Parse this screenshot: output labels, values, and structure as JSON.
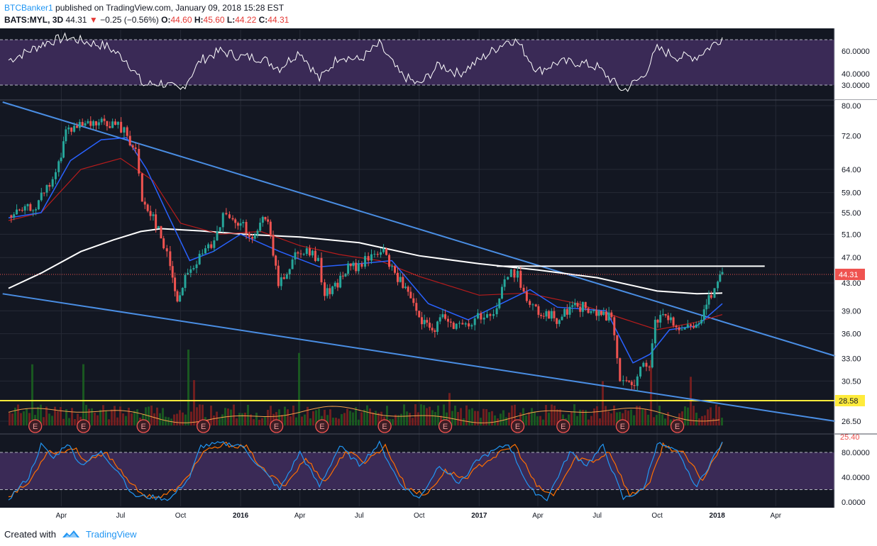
{
  "header": {
    "author": "BTCBanker1",
    "published_text": "published on TradingView.com, January 09, 2018 15:28 EST",
    "symbol_label": "BATS:MYL, 3D",
    "last": "44.31",
    "change_arrow": "▼",
    "change": "−0.25 (−0.56%)",
    "o_label": "O:",
    "o_value": "44.60",
    "h_label": "H:",
    "h_value": "45.60",
    "l_label": "L:",
    "l_value": "44.22",
    "c_label": "C:",
    "c_value": "44.31"
  },
  "footer": {
    "created_with": "Created with",
    "brand": "TradingView"
  },
  "colors": {
    "panel_bg": "#131722",
    "grid": "#262a36",
    "band": "#3a2a56",
    "up": "#26a69a",
    "down": "#ef5350",
    "trendline": "#4a8ee4",
    "ema20": "#2962ff",
    "ema50": "#b71c1c",
    "sma200": "#ffffff",
    "support": "#ffeb3b",
    "stoch_k": "#2196f3",
    "stoch_d": "#ff6f00",
    "last_price": "#ef5350"
  },
  "chart_data": {
    "type": "candlestick",
    "symbol": "BATS:MYL",
    "interval": "3D",
    "x_ticks": [
      "Apr",
      "Jul",
      "Oct",
      "2016",
      "Apr",
      "Jul",
      "Oct",
      "2017",
      "Apr",
      "Jul",
      "Oct",
      "2018",
      "Apr"
    ],
    "price_axis": {
      "scale": "log",
      "ticks": [
        "80.00",
        "72.00",
        "64.00",
        "59.00",
        "55.00",
        "51.00",
        "47.00",
        "43.00",
        "39.00",
        "36.00",
        "33.00",
        "30.50",
        "26.50"
      ],
      "range": [
        25.0,
        81.0
      ],
      "current_price_label": "44.31",
      "support_label": "28.58",
      "clipped_bottom_label": "25.40"
    },
    "price_points": [
      [
        "2015-01-10",
        54.5
      ],
      [
        "2015-01-31",
        55.2
      ],
      [
        "2015-02-21",
        56.5
      ],
      [
        "2015-03-14",
        60.5
      ],
      [
        "2015-03-28",
        65.0
      ],
      [
        "2015-04-08",
        73.5
      ],
      [
        "2015-04-25",
        74.0
      ],
      [
        "2015-05-16",
        74.5
      ],
      [
        "2015-06-06",
        75.5
      ],
      [
        "2015-06-27",
        74.5
      ],
      [
        "2015-07-11",
        72.5
      ],
      [
        "2015-07-24",
        68.0
      ],
      [
        "2015-08-03",
        57.5
      ],
      [
        "2015-08-20",
        54.5
      ],
      [
        "2015-09-05",
        49.0
      ],
      [
        "2015-09-15",
        46.0
      ],
      [
        "2015-09-26",
        40.5
      ],
      [
        "2015-10-12",
        44.5
      ],
      [
        "2015-10-30",
        47.0
      ],
      [
        "2015-11-17",
        49.5
      ],
      [
        "2015-12-05",
        54.5
      ],
      [
        "2015-12-20",
        53.0
      ],
      [
        "2016-01-05",
        52.5
      ],
      [
        "2016-01-19",
        49.5
      ],
      [
        "2016-02-08",
        54.5
      ],
      [
        "2016-02-28",
        43.0
      ],
      [
        "2016-03-12",
        45.0
      ],
      [
        "2016-03-29",
        48.5
      ],
      [
        "2016-04-16",
        48.0
      ],
      [
        "2016-04-29",
        46.0
      ],
      [
        "2016-05-09",
        41.5
      ],
      [
        "2016-05-25",
        42.5
      ],
      [
        "2016-06-14",
        45.5
      ],
      [
        "2016-06-30",
        45.5
      ],
      [
        "2016-07-15",
        47.0
      ],
      [
        "2016-08-03",
        48.5
      ],
      [
        "2016-08-16",
        46.0
      ],
      [
        "2016-08-29",
        44.0
      ],
      [
        "2016-09-18",
        40.5
      ],
      [
        "2016-10-01",
        37.8
      ],
      [
        "2016-10-21",
        36.5
      ],
      [
        "2016-11-10",
        38.5
      ],
      [
        "2016-11-27",
        37.0
      ],
      [
        "2016-12-16",
        37.0
      ],
      [
        "2016-12-30",
        38.5
      ],
      [
        "2017-01-18",
        38.5
      ],
      [
        "2017-01-28",
        39.5
      ],
      [
        "2017-02-09",
        43.5
      ],
      [
        "2017-02-19",
        44.5
      ],
      [
        "2017-03-01",
        44.5
      ],
      [
        "2017-03-15",
        40.5
      ],
      [
        "2017-03-29",
        39.0
      ],
      [
        "2017-04-10",
        38.5
      ],
      [
        "2017-04-30",
        38.0
      ],
      [
        "2017-05-20",
        39.5
      ],
      [
        "2017-06-09",
        39.5
      ],
      [
        "2017-06-30",
        38.5
      ],
      [
        "2017-07-11",
        38.5
      ],
      [
        "2017-07-23",
        38.0
      ],
      [
        "2017-08-05",
        31.0
      ],
      [
        "2017-08-15",
        30.0
      ],
      [
        "2017-08-27",
        30.5
      ],
      [
        "2017-09-10",
        32.0
      ],
      [
        "2017-09-19",
        31.5
      ],
      [
        "2017-09-28",
        37.5
      ],
      [
        "2017-10-14",
        38.5
      ],
      [
        "2017-10-26",
        37.0
      ],
      [
        "2017-11-08",
        36.0
      ],
      [
        "2017-11-26",
        37.0
      ],
      [
        "2017-12-12",
        38.5
      ],
      [
        "2017-12-23",
        41.5
      ],
      [
        "2018-01-02",
        43.0
      ],
      [
        "2018-01-09",
        44.31
      ]
    ],
    "lines": {
      "sma200": [
        [
          "2015-01-10",
          42.2
        ],
        [
          "2015-03-01",
          44.5
        ],
        [
          "2015-05-01",
          48.0
        ],
        [
          "2015-06-20",
          50.0
        ],
        [
          "2015-08-01",
          51.5
        ],
        [
          "2015-09-01",
          52.0
        ],
        [
          "2015-11-01",
          51.6
        ],
        [
          "2016-01-05",
          51.0
        ],
        [
          "2016-04-01",
          50.5
        ],
        [
          "2016-07-01",
          49.5
        ],
        [
          "2016-10-01",
          47.3
        ],
        [
          "2017-01-01",
          46.0
        ],
        [
          "2017-04-01",
          45.0
        ],
        [
          "2017-07-01",
          43.8
        ],
        [
          "2017-10-01",
          41.8
        ],
        [
          "2017-12-01",
          41.4
        ],
        [
          "2018-01-09",
          41.5
        ]
      ],
      "ema50": [
        [
          "2015-01-10",
          53.5
        ],
        [
          "2015-03-01",
          55.0
        ],
        [
          "2015-05-01",
          64.0
        ],
        [
          "2015-07-01",
          66.5
        ],
        [
          "2015-08-20",
          61.5
        ],
        [
          "2015-10-01",
          53.0
        ],
        [
          "2015-12-01",
          51.0
        ],
        [
          "2016-02-01",
          51.5
        ],
        [
          "2016-04-01",
          49.0
        ],
        [
          "2016-06-01",
          47.5
        ],
        [
          "2016-08-01",
          46.5
        ],
        [
          "2016-10-01",
          44.0
        ],
        [
          "2017-01-01",
          41.2
        ],
        [
          "2017-03-15",
          41.5
        ],
        [
          "2017-06-01",
          40.0
        ],
        [
          "2017-08-15",
          37.8
        ],
        [
          "2017-10-01",
          36.5
        ],
        [
          "2017-12-01",
          37.5
        ],
        [
          "2018-01-09",
          38.5
        ]
      ],
      "ema20": [
        [
          "2015-01-10",
          54.0
        ],
        [
          "2015-03-01",
          55.0
        ],
        [
          "2015-04-15",
          66.0
        ],
        [
          "2015-06-01",
          71.0
        ],
        [
          "2015-07-10",
          71.5
        ],
        [
          "2015-08-10",
          64.0
        ],
        [
          "2015-09-10",
          55.0
        ],
        [
          "2015-10-15",
          46.5
        ],
        [
          "2015-11-20",
          48.0
        ],
        [
          "2016-01-01",
          51.0
        ],
        [
          "2016-03-01",
          48.0
        ],
        [
          "2016-05-01",
          45.5
        ],
        [
          "2016-07-01",
          46.0
        ],
        [
          "2016-08-20",
          46.5
        ],
        [
          "2016-10-15",
          40.0
        ],
        [
          "2016-12-15",
          37.8
        ],
        [
          "2017-02-15",
          40.5
        ],
        [
          "2017-03-20",
          42.0
        ],
        [
          "2017-05-01",
          39.5
        ],
        [
          "2017-07-15",
          39.0
        ],
        [
          "2017-08-25",
          32.5
        ],
        [
          "2017-09-20",
          33.5
        ],
        [
          "2017-10-20",
          36.5
        ],
        [
          "2017-12-01",
          37.0
        ],
        [
          "2018-01-09",
          40.0
        ]
      ],
      "upper_trendline": [
        [
          "2015-01-01",
          81.0
        ],
        [
          "2018-07-01",
          33.3
        ]
      ],
      "lower_trendline": [
        [
          "2015-01-01",
          41.4
        ],
        [
          "2018-07-01",
          26.5
        ]
      ],
      "resistance": [
        [
          "2017-01-28",
          45.6
        ],
        [
          "2018-03-15",
          45.6
        ]
      ],
      "support": 28.58
    },
    "earnings_markers": [
      "E",
      "E",
      "E",
      "E",
      "E",
      "E",
      "E",
      "E",
      "E",
      "E",
      "E",
      "E"
    ],
    "rsi": {
      "ticks": [
        "60.0000",
        "40.0000",
        "30.0000"
      ],
      "range": [
        22,
        82
      ],
      "bands": [
        30,
        70
      ],
      "points": [
        [
          "2015-01-10",
          52
        ],
        [
          "2015-02-10",
          60
        ],
        [
          "2015-03-10",
          68
        ],
        [
          "2015-04-10",
          72
        ],
        [
          "2015-05-10",
          68
        ],
        [
          "2015-06-10",
          64
        ],
        [
          "2015-07-10",
          52
        ],
        [
          "2015-08-05",
          30
        ],
        [
          "2015-09-01",
          32
        ],
        [
          "2015-10-01",
          25
        ],
        [
          "2015-11-01",
          52
        ],
        [
          "2015-12-01",
          60
        ],
        [
          "2016-01-01",
          55
        ],
        [
          "2016-02-01",
          54
        ],
        [
          "2016-03-01",
          45
        ],
        [
          "2016-04-01",
          60
        ],
        [
          "2016-05-01",
          35
        ],
        [
          "2016-06-01",
          56
        ],
        [
          "2016-07-01",
          52
        ],
        [
          "2016-08-01",
          66
        ],
        [
          "2016-09-01",
          40
        ],
        [
          "2016-10-01",
          30
        ],
        [
          "2016-11-01",
          48
        ],
        [
          "2016-12-01",
          40
        ],
        [
          "2017-01-01",
          52
        ],
        [
          "2017-02-15",
          70
        ],
        [
          "2017-03-01",
          68
        ],
        [
          "2017-04-01",
          42
        ],
        [
          "2017-05-01",
          50
        ],
        [
          "2017-06-01",
          50
        ],
        [
          "2017-07-01",
          46
        ],
        [
          "2017-08-10",
          25
        ],
        [
          "2017-09-10",
          38
        ],
        [
          "2017-10-01",
          62
        ],
        [
          "2017-11-01",
          55
        ],
        [
          "2017-12-01",
          55
        ],
        [
          "2018-01-09",
          72
        ]
      ]
    },
    "stochastic": {
      "ticks": [
        "80.0000",
        "40.0000",
        "0.0000"
      ],
      "range": [
        -3,
        105
      ],
      "bands": [
        20,
        80
      ],
      "k_points": [
        [
          "2015-01-10",
          5
        ],
        [
          "2015-02-10",
          40
        ],
        [
          "2015-03-01",
          92
        ],
        [
          "2015-03-20",
          70
        ],
        [
          "2015-04-10",
          95
        ],
        [
          "2015-05-01",
          60
        ],
        [
          "2015-06-01",
          80
        ],
        [
          "2015-07-01",
          45
        ],
        [
          "2015-07-20",
          10
        ],
        [
          "2015-08-15",
          8
        ],
        [
          "2015-09-15",
          5
        ],
        [
          "2015-10-15",
          40
        ],
        [
          "2015-11-01",
          90
        ],
        [
          "2015-12-01",
          94
        ],
        [
          "2016-01-01",
          92
        ],
        [
          "2016-02-01",
          55
        ],
        [
          "2016-03-01",
          20
        ],
        [
          "2016-04-01",
          80
        ],
        [
          "2016-05-01",
          25
        ],
        [
          "2016-06-01",
          90
        ],
        [
          "2016-07-01",
          60
        ],
        [
          "2016-08-01",
          94
        ],
        [
          "2016-09-01",
          30
        ],
        [
          "2016-10-01",
          5
        ],
        [
          "2016-11-01",
          60
        ],
        [
          "2016-12-01",
          30
        ],
        [
          "2017-01-01",
          70
        ],
        [
          "2017-02-15",
          94
        ],
        [
          "2017-03-20",
          20
        ],
        [
          "2017-04-15",
          5
        ],
        [
          "2017-05-20",
          80
        ],
        [
          "2017-06-15",
          60
        ],
        [
          "2017-07-10",
          90
        ],
        [
          "2017-08-10",
          5
        ],
        [
          "2017-09-10",
          20
        ],
        [
          "2017-10-01",
          95
        ],
        [
          "2017-11-01",
          80
        ],
        [
          "2017-12-01",
          25
        ],
        [
          "2018-01-09",
          97
        ]
      ],
      "d_points": [
        [
          "2015-01-10",
          10
        ],
        [
          "2015-02-10",
          30
        ],
        [
          "2015-03-10",
          82
        ],
        [
          "2015-04-01",
          80
        ],
        [
          "2015-04-20",
          88
        ],
        [
          "2015-05-10",
          65
        ],
        [
          "2015-06-10",
          78
        ],
        [
          "2015-07-10",
          40
        ],
        [
          "2015-08-01",
          12
        ],
        [
          "2015-09-01",
          8
        ],
        [
          "2015-10-01",
          25
        ],
        [
          "2015-11-05",
          80
        ],
        [
          "2015-12-10",
          93
        ],
        [
          "2016-01-10",
          88
        ],
        [
          "2016-02-10",
          45
        ],
        [
          "2016-03-10",
          28
        ],
        [
          "2016-04-10",
          70
        ],
        [
          "2016-05-10",
          32
        ],
        [
          "2016-06-10",
          82
        ],
        [
          "2016-07-10",
          65
        ],
        [
          "2016-08-10",
          90
        ],
        [
          "2016-09-10",
          25
        ],
        [
          "2016-10-10",
          10
        ],
        [
          "2016-11-10",
          50
        ],
        [
          "2016-12-10",
          38
        ],
        [
          "2017-01-10",
          65
        ],
        [
          "2017-02-25",
          92
        ],
        [
          "2017-03-30",
          25
        ],
        [
          "2017-04-25",
          10
        ],
        [
          "2017-05-30",
          72
        ],
        [
          "2017-06-25",
          65
        ],
        [
          "2017-07-20",
          82
        ],
        [
          "2017-08-20",
          10
        ],
        [
          "2017-09-20",
          30
        ],
        [
          "2017-10-10",
          92
        ],
        [
          "2017-11-10",
          78
        ],
        [
          "2017-12-10",
          35
        ],
        [
          "2018-01-09",
          96
        ]
      ]
    }
  }
}
